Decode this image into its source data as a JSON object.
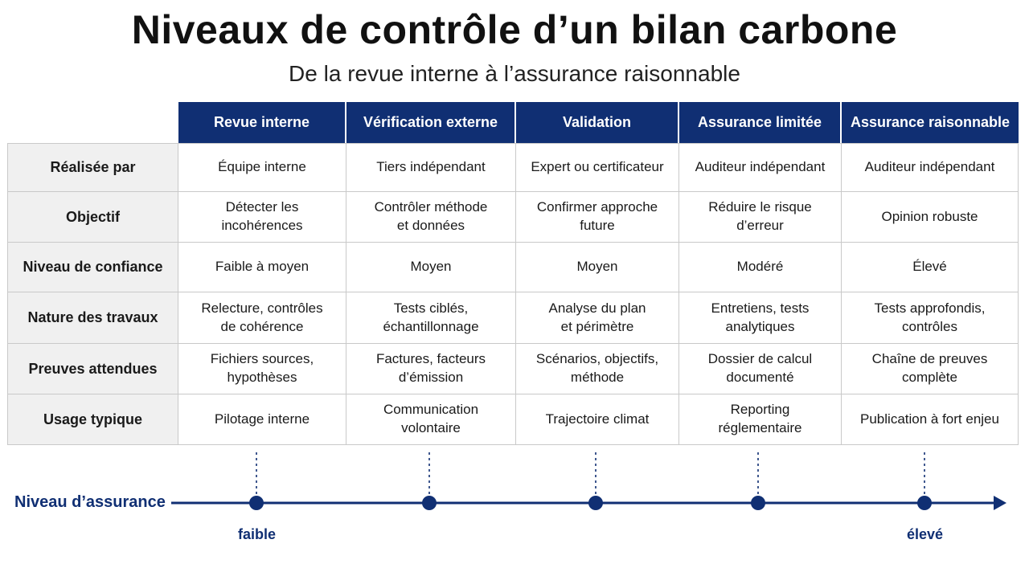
{
  "title": "Niveaux de contrôle d’un bilan carbone",
  "subtitle": "De la revue interne à l’assurance raisonnable",
  "table": {
    "columns": [
      "Revue interne",
      "Vérification externe",
      "Validation",
      "Assurance limitée",
      "Assurance raisonnable"
    ],
    "rows": [
      {
        "label": "Réalisée par",
        "cells": [
          "Équipe interne",
          "Tiers indépendant",
          "Expert ou certificateur",
          "Auditeur indépendant",
          "Auditeur indépendant"
        ]
      },
      {
        "label": "Objectif",
        "cells": [
          "Détecter les\nincohérences",
          "Contrôler méthode\net données",
          "Confirmer approche\nfuture",
          "Réduire le risque\nd’erreur",
          "Opinion robuste"
        ]
      },
      {
        "label": "Niveau de confiance",
        "cells": [
          "Faible à moyen",
          "Moyen",
          "Moyen",
          "Modéré",
          "Élevé"
        ]
      },
      {
        "label": "Nature des travaux",
        "cells": [
          "Relecture, contrôles\nde cohérence",
          "Tests ciblés,\néchantillonnage",
          "Analyse du plan\net périmètre",
          "Entretiens, tests\nanalytiques",
          "Tests approfondis,\ncontrôles"
        ]
      },
      {
        "label": "Preuves attendues",
        "cells": [
          "Fichiers sources,\nhypothèses",
          "Factures, facteurs\nd’émission",
          "Scénarios, objectifs,\nméthode",
          "Dossier de calcul\ndocumenté",
          "Chaîne de preuves\ncomplète"
        ]
      },
      {
        "label": "Usage typique",
        "cells": [
          "Pilotage interne",
          "Communication\nvolontaire",
          "Trajectoire climat",
          "Reporting\nréglementaire",
          "Publication à fort enjeu"
        ]
      }
    ]
  },
  "scale": {
    "label": "Niveau d’assurance",
    "low": "faible",
    "high": "élevé",
    "color": "#102f73"
  },
  "colors": {
    "header_bg": "#102f73",
    "row_label_bg": "#f0f0f0"
  }
}
